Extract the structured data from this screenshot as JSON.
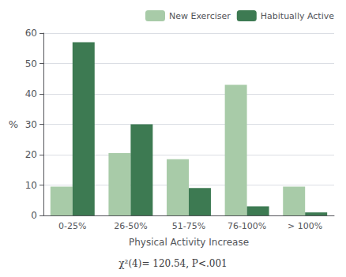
{
  "chart_data": {
    "type": "bar",
    "subtitle": "χ²(4)= 120.54, P<.001",
    "xlabel": "Physical Activity Increase",
    "ylabel": "%",
    "categories": [
      "0-25%",
      "26-50%",
      "51-75%",
      "76-100%",
      "> 100%"
    ],
    "series": [
      {
        "name": "New Exerciser",
        "color": "#a8cba8",
        "values": [
          9.5,
          20.5,
          18.5,
          43.0,
          9.5
        ]
      },
      {
        "name": "Habitually Active",
        "color": "#3d7a52",
        "values": [
          57.0,
          30.0,
          9.0,
          3.0,
          1.0
        ]
      }
    ],
    "ylim": [
      0,
      60
    ],
    "yticks": [
      0,
      10,
      20,
      30,
      40,
      50,
      60
    ],
    "grid": true,
    "legend": "upper right"
  }
}
